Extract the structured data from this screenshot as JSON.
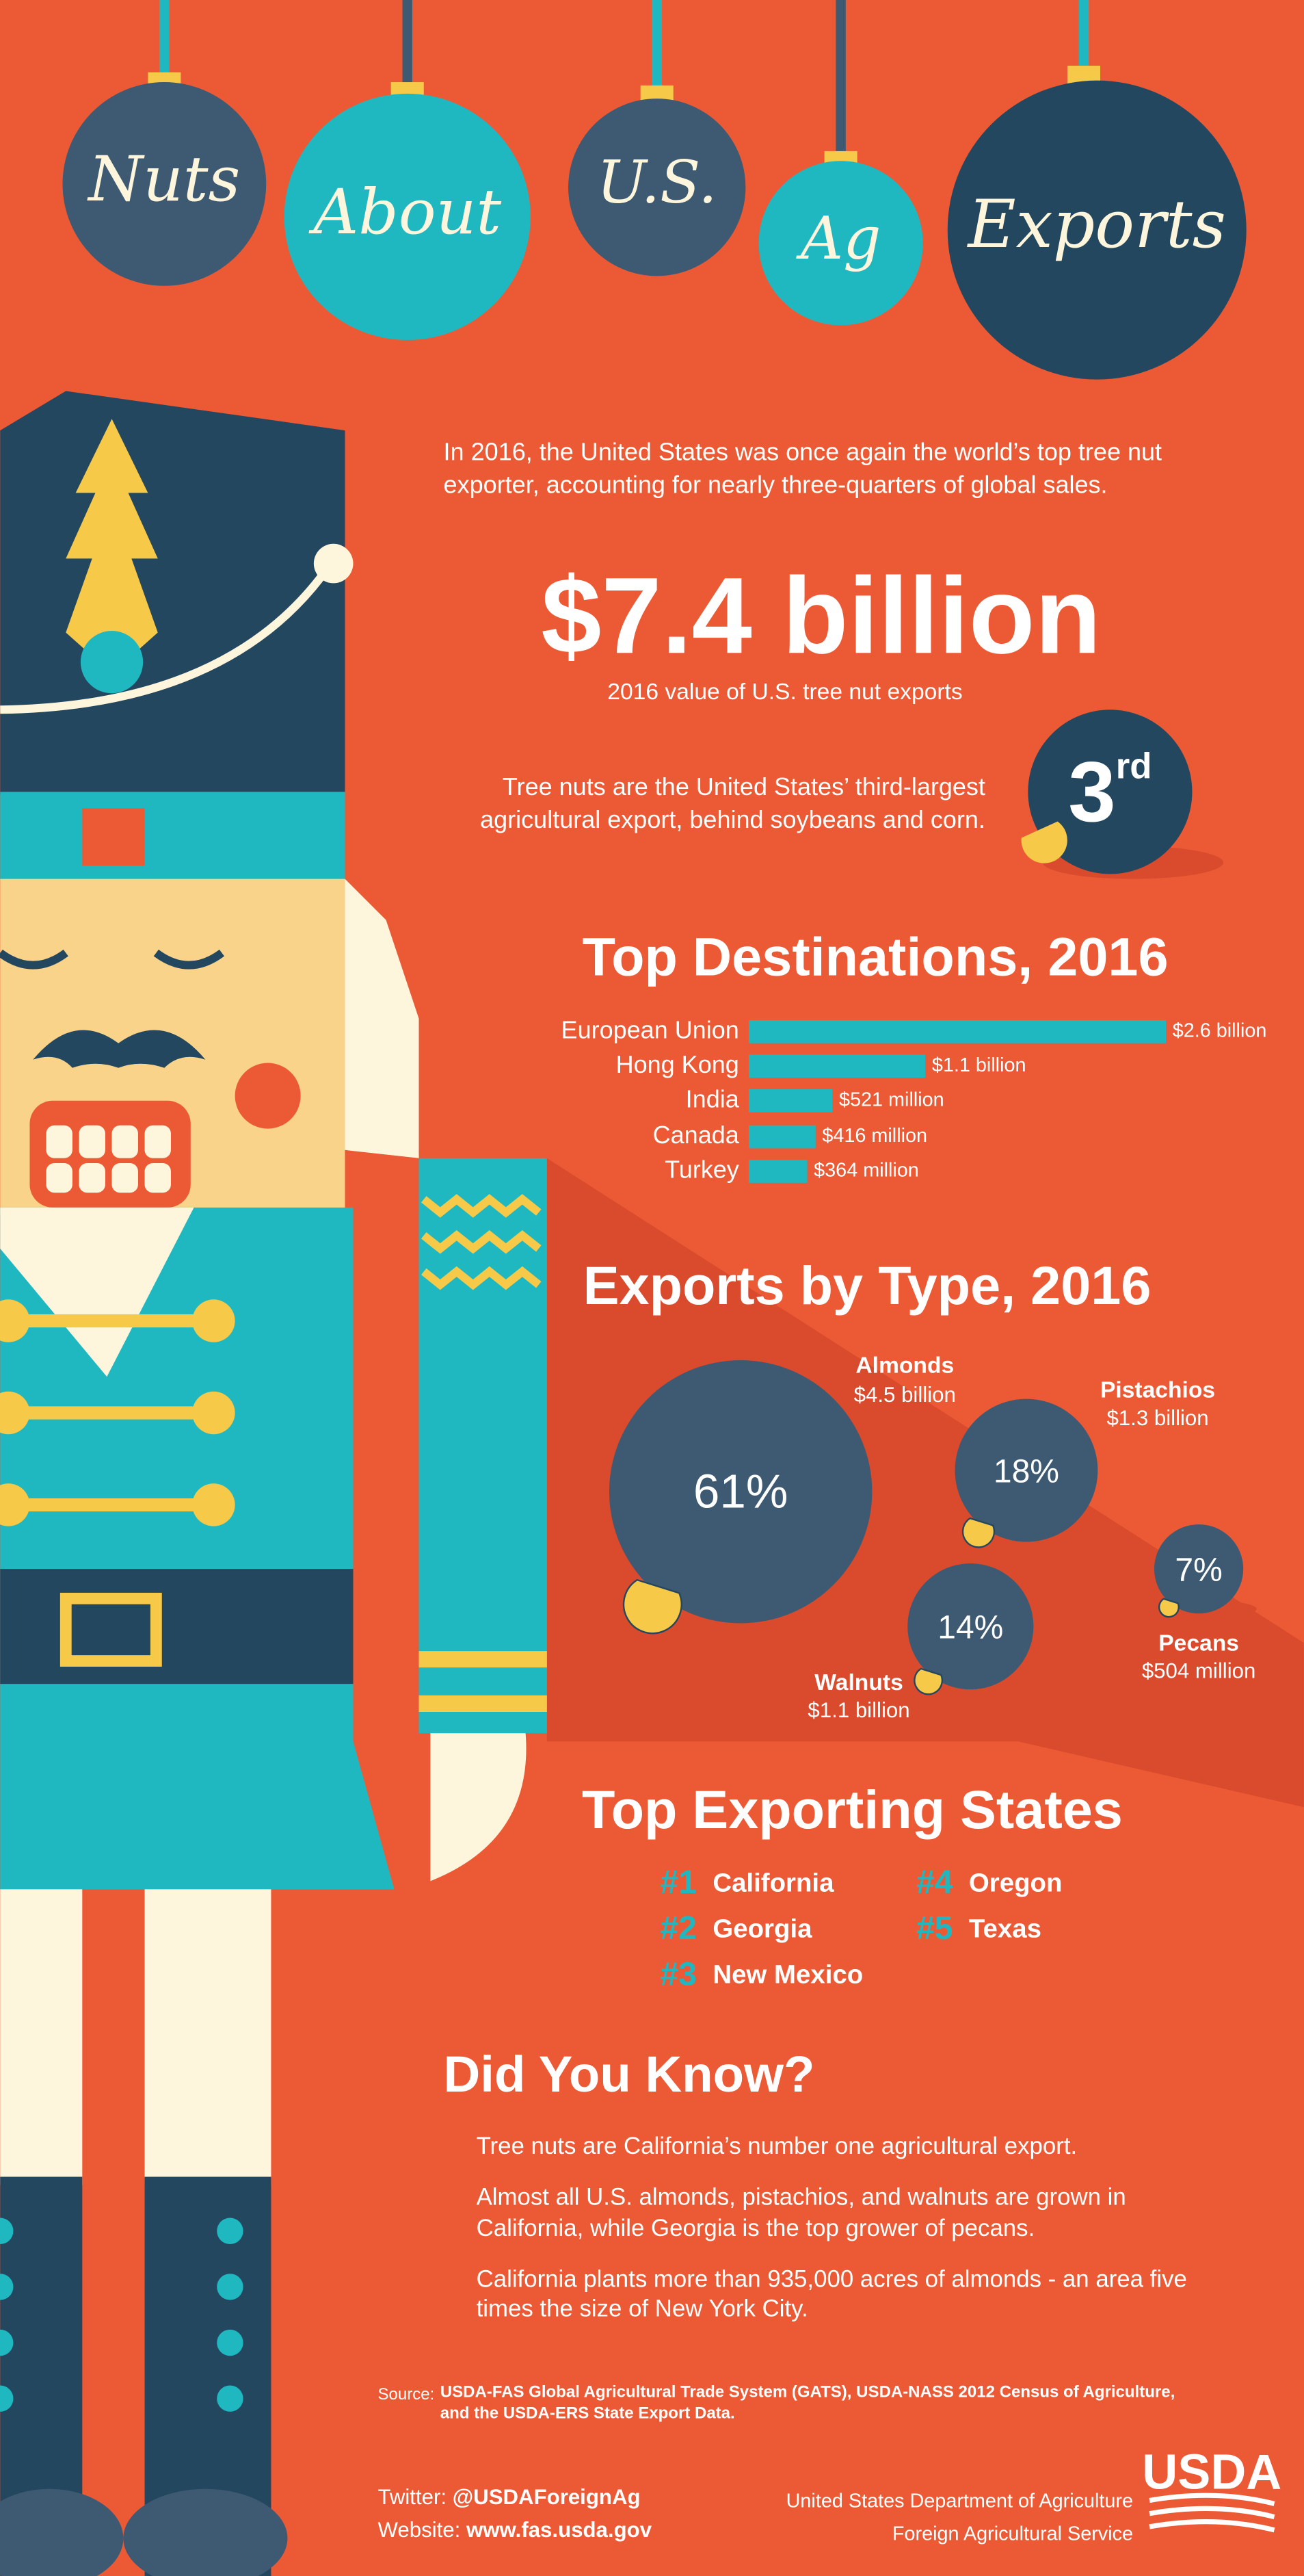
{
  "ornaments": [
    "Nuts",
    "About",
    "U.S.",
    "Ag",
    "Exports"
  ],
  "intro": "In 2016, the United States was once again the world’s top tree nut exporter, accounting for nearly three-quarters of global sales.",
  "headline_value": "$7.4 billion",
  "headline_caption": "2016  value of U.S. tree nut exports",
  "rank_text": "Tree nuts are the United States’ third-largest agricultural export, behind soybeans and corn.",
  "rank": {
    "number": "3",
    "suffix": "rd"
  },
  "chart_data": [
    {
      "type": "bar",
      "title": "Top Destinations, 2016",
      "categories": [
        "European Union",
        "Hong Kong",
        "India",
        "Canada",
        "Turkey"
      ],
      "values": [
        2600,
        1100,
        521,
        416,
        364
      ],
      "value_labels": [
        "$2.6 billion",
        "$1.1 billion",
        "$521 million",
        "$416 million",
        "$364 million"
      ],
      "color": "#1fb8c1"
    },
    {
      "type": "bubble",
      "title": "Exports by Type, 2016",
      "categories": [
        "Almonds",
        "Pistachios",
        "Walnuts",
        "Pecans"
      ],
      "values": [
        61,
        18,
        14,
        7
      ],
      "value_labels": [
        "61%",
        "18%",
        "14%",
        "7%"
      ],
      "amount_labels": [
        "$4.5 billion",
        "$1.3 billion",
        "$1.1 billion",
        "$504 million"
      ],
      "color": "#3e5a72"
    }
  ],
  "states": {
    "title": "Top Exporting States",
    "items": [
      {
        "rank": "#1",
        "name": "California"
      },
      {
        "rank": "#2",
        "name": "Georgia"
      },
      {
        "rank": "#3",
        "name": "New Mexico"
      },
      {
        "rank": "#4",
        "name": "Oregon"
      },
      {
        "rank": "#5",
        "name": "Texas"
      }
    ]
  },
  "did_you_know": {
    "title": "Did You Know?",
    "facts": [
      "Tree nuts are California’s number one agricultural export.",
      "Almost all U.S. almonds, pistachios, and walnuts are grown in California, while Georgia is the top grower of pecans.",
      "California plants more than 935,000 acres of almonds - an area five times the size of New York City."
    ]
  },
  "source": {
    "label": "Source:",
    "text": "USDA-FAS Global Agricultural Trade System (GATS), USDA-NASS 2012 Census of Agriculture, and the USDA-ERS State Export Data."
  },
  "footer": {
    "twitter_label": "Twitter:",
    "twitter": "@USDAForeignAg",
    "website_label": "Website:",
    "website": "www.fas.usda.gov",
    "agency": "United States Department of Agriculture",
    "service": "Foreign Agricultural Service",
    "logo": "USDA"
  }
}
